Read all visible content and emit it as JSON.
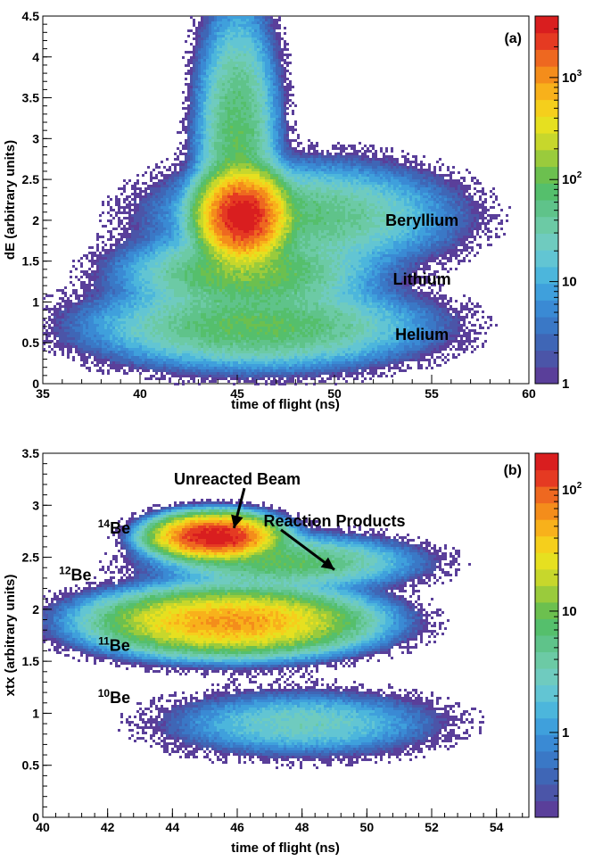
{
  "chart_data": [
    {
      "type": "heatmap",
      "panel_label": "(a)",
      "xlabel": "time of flight (ns)",
      "ylabel": "dE (arbitrary units)",
      "xlim": [
        35,
        60
      ],
      "ylim": [
        0,
        4.5
      ],
      "x_ticks": [
        35,
        40,
        45,
        50,
        55,
        60
      ],
      "y_ticks": [
        0,
        0.5,
        1,
        1.5,
        2,
        2.5,
        3,
        3.5,
        4,
        4.5
      ],
      "color_scale": "log",
      "color_range": [
        1,
        4000
      ],
      "colorbar_ticks": [
        {
          "value": 1,
          "base": "1",
          "exp": ""
        },
        {
          "value": 10,
          "base": "10",
          "exp": ""
        },
        {
          "value": 100,
          "base": "10",
          "exp": "2"
        },
        {
          "value": 1000,
          "base": "10",
          "exp": "3"
        }
      ],
      "annotations": [
        {
          "text": "Beryllium",
          "x": 54.5,
          "y": 2.0
        },
        {
          "text": "Lithium",
          "x": 54.5,
          "y": 1.28
        },
        {
          "text": "Helium",
          "x": 54.5,
          "y": 0.6
        }
      ],
      "blobs": [
        {
          "name": "Beryllium",
          "cx": 45.3,
          "cy": 2.05,
          "sx": 0.9,
          "sy": 0.22,
          "peak": 4000
        },
        {
          "name": "Beryllium-tail",
          "cx": 48.5,
          "cy": 2.05,
          "sx": 3.2,
          "sy": 0.28,
          "peak": 60
        },
        {
          "name": "Beryllium-upper",
          "cx": 45.0,
          "cy": 3.0,
          "sx": 0.9,
          "sy": 0.7,
          "peak": 80
        },
        {
          "name": "Lithium",
          "cx": 45.5,
          "cy": 1.35,
          "sx": 2.6,
          "sy": 0.2,
          "peak": 120
        },
        {
          "name": "Helium",
          "cx": 46.0,
          "cy": 0.7,
          "sx": 3.6,
          "sy": 0.22,
          "peak": 90
        }
      ]
    },
    {
      "type": "heatmap",
      "panel_label": "(b)",
      "xlabel": "time of flight (ns)",
      "ylabel": "xtx (arbitrary units)",
      "xlim": [
        40,
        55
      ],
      "ylim": [
        0,
        3.5
      ],
      "x_ticks": [
        40,
        42,
        44,
        46,
        48,
        50,
        52,
        54
      ],
      "y_ticks": [
        0,
        0.5,
        1,
        1.5,
        2,
        2.5,
        3,
        3.5
      ],
      "color_scale": "log",
      "color_range": [
        0.2,
        200
      ],
      "colorbar_ticks": [
        {
          "value": 1,
          "base": "1",
          "exp": ""
        },
        {
          "value": 10,
          "base": "10",
          "exp": ""
        },
        {
          "value": 100,
          "base": "10",
          "exp": "2"
        }
      ],
      "isotope_labels": [
        {
          "mass": "14",
          "element": "Be",
          "x": 42.2,
          "y": 2.78
        },
        {
          "mass": "12",
          "element": "Be",
          "x": 41.0,
          "y": 2.33
        },
        {
          "mass": "11",
          "element": "Be",
          "x": 42.2,
          "y": 1.65
        },
        {
          "mass": "10",
          "element": "Be",
          "x": 42.2,
          "y": 1.15
        }
      ],
      "annotations": [
        {
          "text": "Unreacted Beam",
          "x": 46.0,
          "y": 3.25,
          "arrow_to": [
            45.9,
            2.78
          ]
        },
        {
          "text": "Reaction Products",
          "x": 49.0,
          "y": 2.85,
          "arrow_to": [
            49.0,
            2.38
          ]
        }
      ],
      "blobs": [
        {
          "name": "14Be-unreacted",
          "cx": 45.3,
          "cy": 2.7,
          "sx": 0.8,
          "sy": 0.09,
          "peak": 200
        },
        {
          "name": "14Be-products",
          "cx": 47.5,
          "cy": 2.45,
          "sx": 1.8,
          "sy": 0.12,
          "peak": 8
        },
        {
          "name": "12Be",
          "cx": 45.8,
          "cy": 1.88,
          "sx": 1.8,
          "sy": 0.14,
          "peak": 60
        },
        {
          "name": "11Be-10Be",
          "cx": 48.0,
          "cy": 0.9,
          "sx": 2.0,
          "sy": 0.15,
          "peak": 3
        }
      ]
    }
  ]
}
